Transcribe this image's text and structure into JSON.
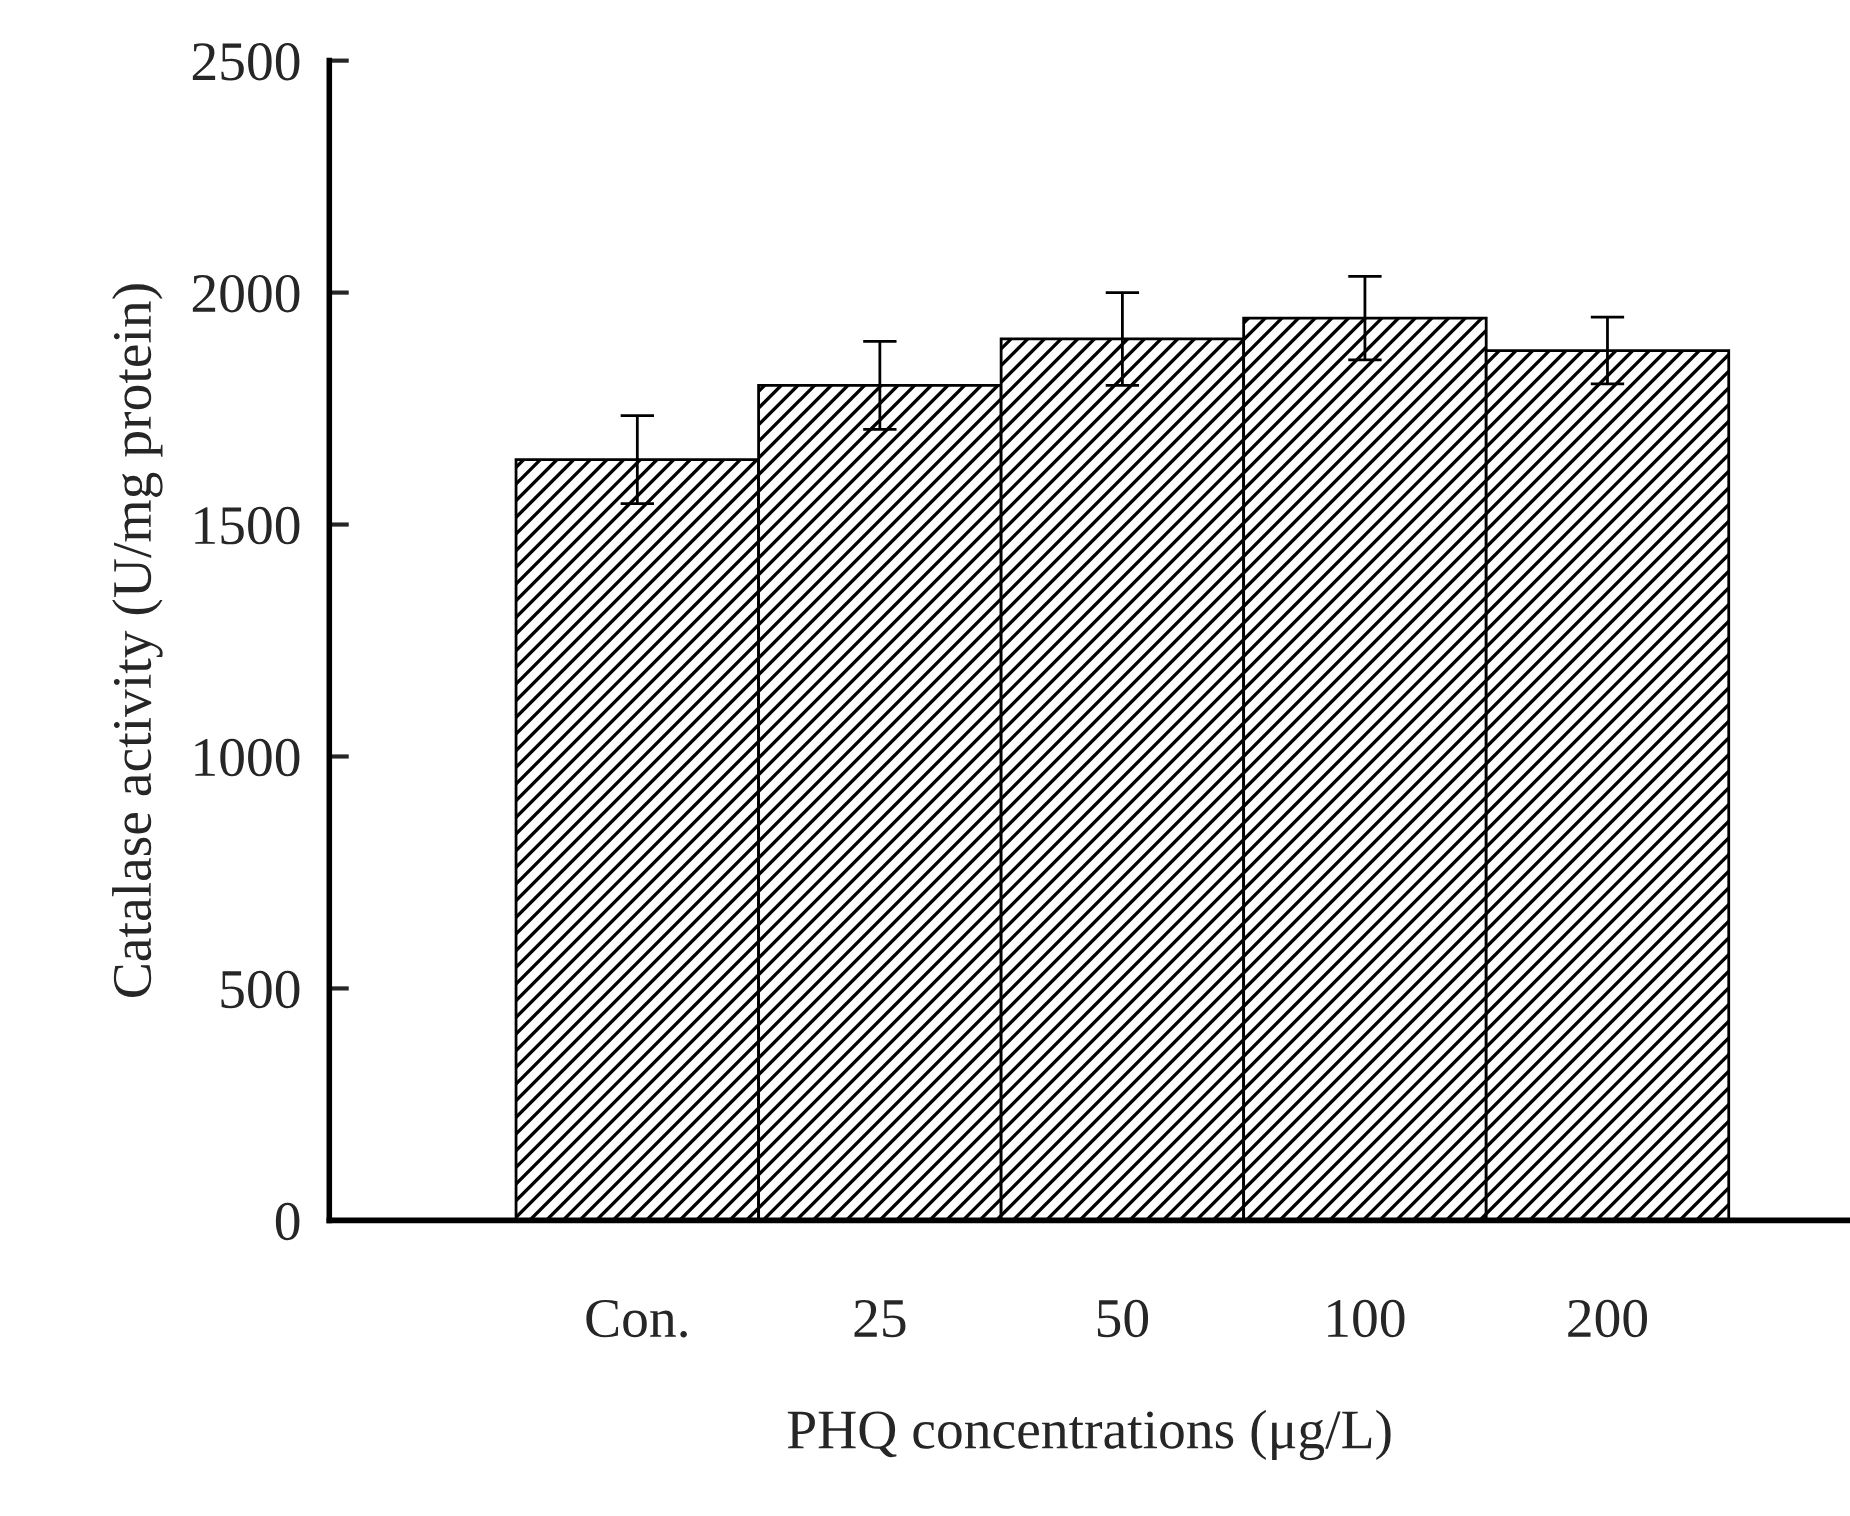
{
  "chart_data": {
    "type": "bar",
    "xlabel": "PHQ concentrations (μg/L)",
    "ylabel": "Catalase activity (U/mg protein)",
    "categories": [
      "Con.",
      "25",
      "50",
      "100",
      "200"
    ],
    "values": [
      1640,
      1800,
      1900,
      1945,
      1875
    ],
    "errors": [
      95,
      95,
      100,
      90,
      72
    ],
    "color": "#000000",
    "ylim": [
      0,
      2500
    ],
    "yticks": [
      0,
      500,
      1000,
      1500,
      2000,
      2500
    ],
    "grid": false,
    "legend": false
  }
}
